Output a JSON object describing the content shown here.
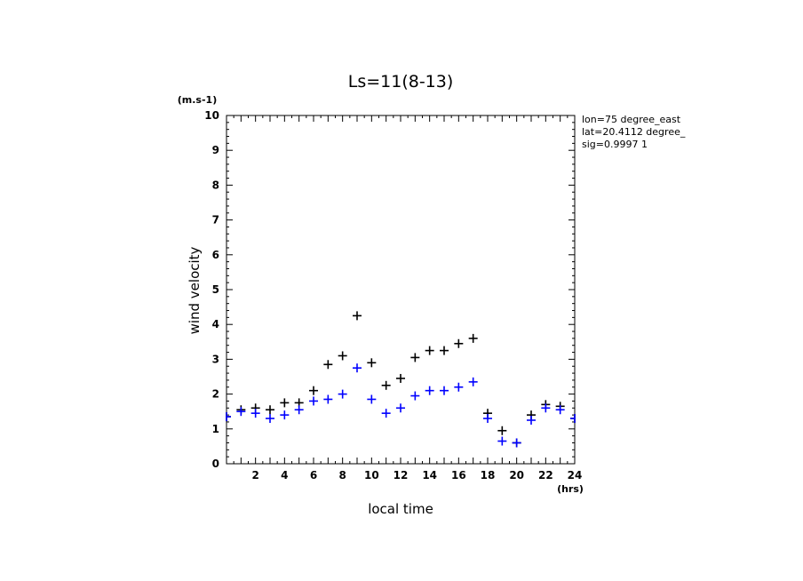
{
  "chart_data": {
    "type": "scatter",
    "title": "Ls=11(8-13)",
    "xlabel": "local time",
    "ylabel": "wind velocity",
    "x_unit": "(hrs)",
    "y_unit": "(m.s-1)",
    "xlim": [
      0,
      24
    ],
    "ylim": [
      0,
      10
    ],
    "x_ticks": [
      2,
      4,
      6,
      8,
      10,
      12,
      14,
      16,
      18,
      20,
      22,
      24
    ],
    "y_ticks": [
      0,
      1,
      2,
      3,
      4,
      5,
      6,
      7,
      8,
      9,
      10
    ],
    "grid": false,
    "marker": "+",
    "info_lines": [
      "lon=75 degree_east",
      "lat=20.4112 degree_",
      "sig=0.9997 1"
    ],
    "series": [
      {
        "color": "#000000",
        "x": [
          0,
          1,
          2,
          3,
          4,
          5,
          6,
          7,
          8,
          9,
          10,
          11,
          12,
          13,
          14,
          15,
          16,
          17,
          18,
          19,
          20,
          21,
          22,
          23,
          24
        ],
        "values": [
          1.35,
          1.55,
          1.6,
          1.55,
          1.75,
          1.75,
          2.1,
          2.85,
          3.1,
          4.25,
          2.9,
          2.25,
          2.45,
          3.05,
          3.25,
          3.25,
          3.45,
          3.6,
          1.45,
          0.95,
          0.6,
          1.4,
          1.7,
          1.65,
          1.3
        ]
      },
      {
        "color": "#0000ff",
        "x": [
          0,
          1,
          2,
          3,
          4,
          5,
          6,
          7,
          8,
          9,
          10,
          11,
          12,
          13,
          14,
          15,
          16,
          17,
          18,
          19,
          20,
          21,
          22,
          23,
          24
        ],
        "values": [
          1.35,
          1.5,
          1.45,
          1.3,
          1.4,
          1.55,
          1.8,
          1.85,
          2.0,
          2.75,
          1.85,
          1.45,
          1.6,
          1.95,
          2.1,
          2.1,
          2.2,
          2.35,
          1.3,
          0.65,
          0.6,
          1.25,
          1.6,
          1.55,
          1.3
        ]
      }
    ]
  }
}
